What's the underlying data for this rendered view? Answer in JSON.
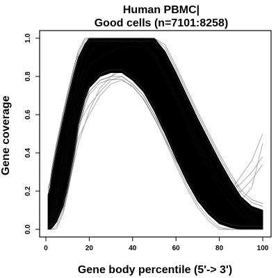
{
  "chart_data": {
    "type": "line",
    "title": "Human PBMC|",
    "subtitle": "Good cells (n=7101:8258)",
    "xlabel": "Gene body percentile (5'-> 3')",
    "ylabel": "Gene coverage",
    "xlim": [
      0,
      100
    ],
    "ylim": [
      0,
      1
    ],
    "x_ticks": [
      "0",
      "20",
      "40",
      "60",
      "80",
      "100"
    ],
    "y_ticks": [
      "0.0",
      "0.2",
      "0.4",
      "0.6",
      "0.8",
      "1.0"
    ],
    "grid": false,
    "legend": "none",
    "series_color": "#000000",
    "outlier_color": "#9a9a9a",
    "envelope": {
      "x": [
        1,
        2,
        3,
        5,
        8,
        10,
        13,
        15,
        18,
        20,
        25,
        30,
        35,
        40,
        45,
        50,
        55,
        60,
        65,
        70,
        75,
        80,
        85,
        90,
        95,
        100
      ],
      "upper": [
        0.18,
        0.22,
        0.3,
        0.42,
        0.58,
        0.68,
        0.82,
        0.9,
        0.97,
        1.0,
        1.0,
        1.0,
        1.0,
        1.0,
        1.0,
        1.0,
        0.93,
        0.82,
        0.7,
        0.58,
        0.47,
        0.36,
        0.26,
        0.17,
        0.12,
        0.1
      ],
      "lower": [
        0.0,
        0.0,
        0.01,
        0.04,
        0.12,
        0.22,
        0.4,
        0.55,
        0.68,
        0.74,
        0.8,
        0.82,
        0.82,
        0.78,
        0.72,
        0.62,
        0.5,
        0.37,
        0.25,
        0.15,
        0.08,
        0.03,
        0.01,
        0.0,
        0.0,
        0.0
      ]
    },
    "representative_curves": [
      {
        "y": [
          0.02,
          0.03,
          0.07,
          0.16,
          0.32,
          0.44,
          0.62,
          0.74,
          0.86,
          0.92,
          0.97,
          0.99,
          1.0,
          0.99,
          0.97,
          0.92,
          0.82,
          0.7,
          0.58,
          0.46,
          0.36,
          0.26,
          0.18,
          0.11,
          0.06,
          0.03
        ]
      },
      {
        "y": [
          0.01,
          0.02,
          0.05,
          0.12,
          0.26,
          0.38,
          0.56,
          0.68,
          0.8,
          0.86,
          0.9,
          0.93,
          0.95,
          0.96,
          0.95,
          0.9,
          0.8,
          0.68,
          0.55,
          0.43,
          0.32,
          0.22,
          0.14,
          0.08,
          0.04,
          0.02
        ]
      },
      {
        "y": [
          0.04,
          0.06,
          0.11,
          0.22,
          0.4,
          0.52,
          0.7,
          0.82,
          0.93,
          0.98,
          1.0,
          1.0,
          1.0,
          1.0,
          1.0,
          0.98,
          0.9,
          0.78,
          0.66,
          0.54,
          0.43,
          0.32,
          0.23,
          0.15,
          0.1,
          0.07
        ]
      }
    ],
    "outlier_curves": [
      {
        "x": [
          1,
          5,
          10,
          15,
          20,
          25,
          30,
          35,
          40,
          45,
          50,
          55,
          60,
          65,
          70,
          75,
          80,
          85,
          90,
          95,
          100
        ],
        "y": [
          0.02,
          0.15,
          0.35,
          0.55,
          0.65,
          0.72,
          0.78,
          0.8,
          0.76,
          0.7,
          0.6,
          0.5,
          0.4,
          0.32,
          0.25,
          0.2,
          0.16,
          0.14,
          0.15,
          0.22,
          0.45
        ]
      },
      {
        "x": [
          1,
          5,
          10,
          15,
          20,
          25,
          30,
          35,
          40,
          45,
          50,
          55,
          60,
          65,
          70,
          75,
          80,
          85,
          90,
          95,
          100
        ],
        "y": [
          0.0,
          0.1,
          0.28,
          0.48,
          0.6,
          0.7,
          0.76,
          0.78,
          0.75,
          0.68,
          0.58,
          0.47,
          0.36,
          0.28,
          0.22,
          0.18,
          0.16,
          0.2,
          0.28,
          0.36,
          0.5
        ]
      },
      {
        "x": [
          1,
          5,
          10,
          15,
          20,
          25,
          30,
          35,
          40,
          45,
          50,
          55,
          60,
          65,
          70,
          75,
          80,
          85,
          90,
          95,
          100
        ],
        "y": [
          0.03,
          0.2,
          0.42,
          0.62,
          0.72,
          0.78,
          0.8,
          0.83,
          0.82,
          0.78,
          0.7,
          0.6,
          0.48,
          0.38,
          0.3,
          0.26,
          0.22,
          0.2,
          0.24,
          0.3,
          0.38
        ]
      },
      {
        "x": [
          1,
          5,
          10,
          15,
          20,
          25,
          30,
          35,
          40,
          45,
          50,
          55,
          60,
          65,
          70,
          75,
          80,
          85,
          90,
          95,
          100
        ],
        "y": [
          0.0,
          0.05,
          0.2,
          0.45,
          0.62,
          0.74,
          0.8,
          0.85,
          0.84,
          0.82,
          0.76,
          0.66,
          0.55,
          0.44,
          0.34,
          0.27,
          0.22,
          0.18,
          0.2,
          0.26,
          0.34
        ]
      }
    ]
  }
}
